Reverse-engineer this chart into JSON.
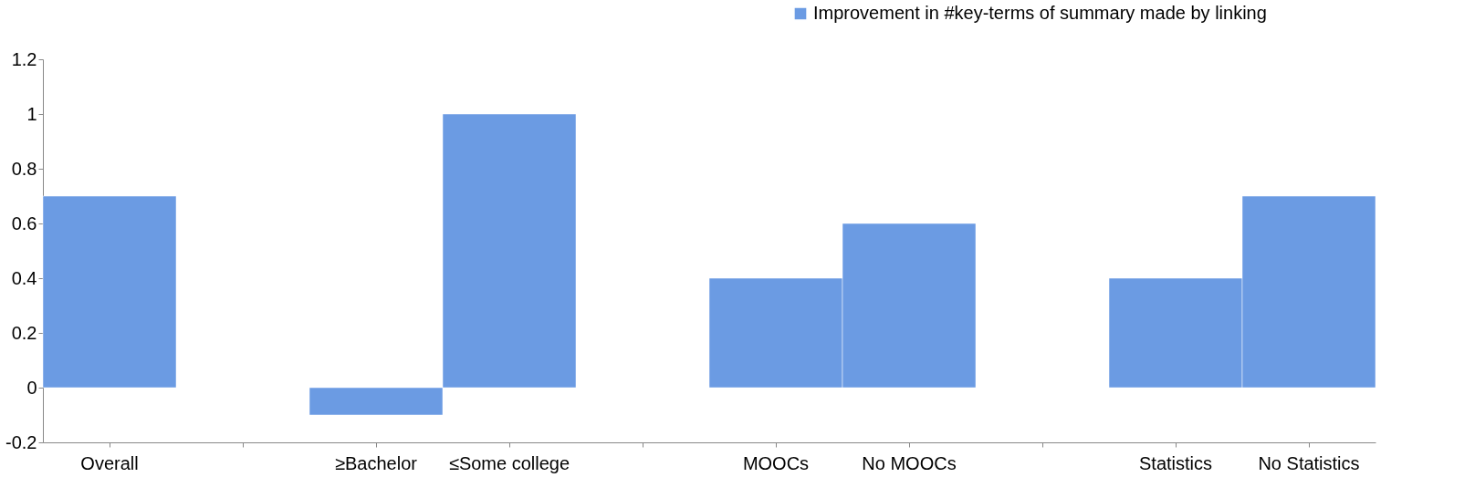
{
  "chart_data": {
    "type": "bar",
    "categories": [
      "Overall",
      null,
      "≥Bachelor",
      "≤Some college",
      null,
      "MOOCs",
      "No MOOCs",
      null,
      "Statistics",
      "No Statistics"
    ],
    "series": [
      {
        "name": "Improvement in #key-terms of summary made by linking",
        "color": "#6b9be3",
        "values": [
          0.7,
          null,
          -0.1,
          1.0,
          null,
          0.4,
          0.6,
          null,
          0.4,
          0.7
        ]
      }
    ],
    "ylim": [
      -0.2,
      1.2
    ],
    "yticks": [
      -0.2,
      0,
      0.2,
      0.4,
      0.6,
      0.8,
      1,
      1.2
    ],
    "grid": false,
    "legend": "top right"
  }
}
